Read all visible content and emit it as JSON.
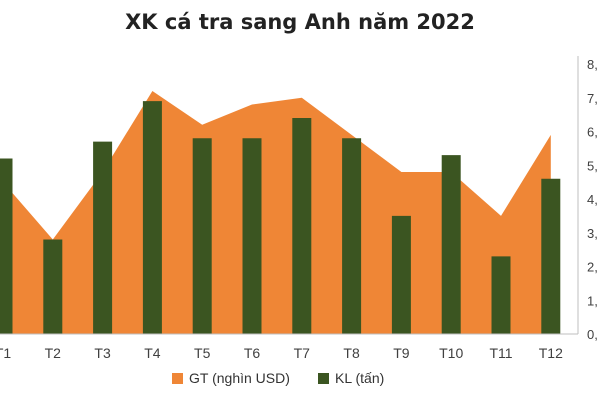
{
  "chart_data": {
    "type": "bar+area",
    "title": "XK cá tra sang Anh năm 2022",
    "categories": [
      "T1",
      "T2",
      "T3",
      "T4",
      "T5",
      "T6",
      "T7",
      "T8",
      "T9",
      "T10",
      "T11",
      "T12"
    ],
    "series": [
      {
        "name": "GT (nghìn USD)",
        "kind": "area",
        "values": [
          4.5,
          2.8,
          4.8,
          7.2,
          6.2,
          6.8,
          7.0,
          5.9,
          4.8,
          4.8,
          3.5,
          5.9
        ]
      },
      {
        "name": "KL (tấn)",
        "kind": "bar",
        "values": [
          5.2,
          2.8,
          5.7,
          6.9,
          5.8,
          5.8,
          6.4,
          5.8,
          3.5,
          5.3,
          2.3,
          4.6
        ]
      }
    ],
    "y_ticks": [
      "0,",
      "1,",
      "2,",
      "3,",
      "4,",
      "5,",
      "6,",
      "7,",
      "8,"
    ],
    "ylim": [
      0,
      8
    ],
    "grid": false,
    "legend_position": "bottom",
    "colors": {
      "area": "#ef8636",
      "bar": "#3b5521",
      "axis": "#bfbfbf",
      "text": "#404040"
    }
  }
}
